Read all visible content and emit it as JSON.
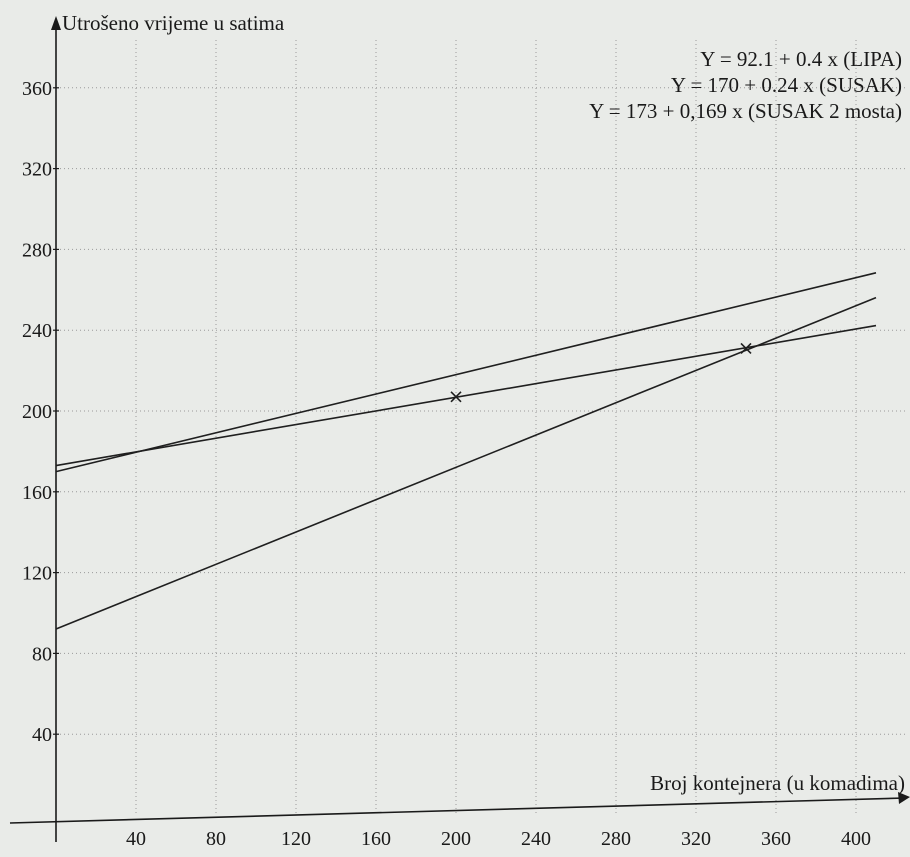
{
  "chart_data": {
    "type": "line",
    "ylabel": "Utrošeno vrijeme u satima",
    "xlabel": "Broj kontejnera (u komadima)",
    "xlim": [
      0,
      420
    ],
    "ylim": [
      0,
      380
    ],
    "x_ticks": [
      40,
      80,
      120,
      160,
      200,
      240,
      280,
      320,
      360,
      400
    ],
    "y_ticks": [
      40,
      80,
      120,
      160,
      200,
      240,
      280,
      320,
      360
    ],
    "grid": true,
    "annotations": [
      "Y = 92.1 + 0.4 x  (LIPA)",
      "Y = 170 + 0.24 x  (SUSAK)",
      "Y = 173 + 0,169 x  (SUSAK 2 mosta)"
    ],
    "series": [
      {
        "x": [
          0,
          410
        ],
        "y": [
          92.1,
          256.1
        ]
      },
      {
        "x": [
          0,
          410
        ],
        "y": [
          170,
          268.4
        ]
      },
      {
        "x": [
          0,
          410
        ],
        "y": [
          173,
          242.3
        ]
      }
    ],
    "markers": [
      {
        "x": 200,
        "y": 207
      },
      {
        "x": 345,
        "y": 231
      }
    ]
  }
}
